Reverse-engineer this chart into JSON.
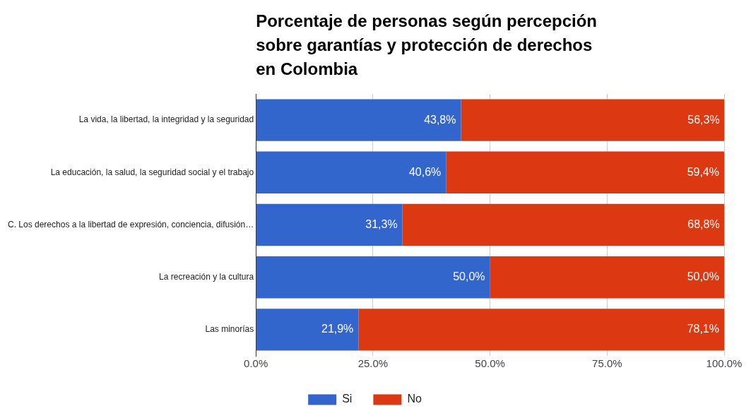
{
  "chart_data": {
    "type": "bar",
    "orientation": "horizontal",
    "stacked": true,
    "title": "Porcentaje de personas según percepción sobre garantías y protección de derechos en Colombia",
    "categories": [
      "La vida, la libertad, la integridad y la seguridad",
      "La educación, la salud, la seguridad social y el trabajo",
      "C. Los derechos a la libertad de expresión, conciencia, difusión…",
      "La recreación y la cultura",
      "Las minorías"
    ],
    "series": [
      {
        "name": "Si",
        "color": "#3366cc",
        "values": [
          43.8,
          40.6,
          31.3,
          50.0,
          21.9
        ],
        "value_labels": [
          "43,8%",
          "40,6%",
          "31,3%",
          "50,0%",
          "21,9%"
        ]
      },
      {
        "name": "No",
        "color": "#dc3912",
        "values": [
          56.3,
          59.4,
          68.8,
          50.0,
          78.1
        ],
        "value_labels": [
          "56,3%",
          "59,4%",
          "68,8%",
          "50,0%",
          "78,1%"
        ]
      }
    ],
    "xlim": [
      0,
      100
    ],
    "xticks": [
      {
        "value": 0,
        "label": "0.0%"
      },
      {
        "value": 25,
        "label": "25.0%"
      },
      {
        "value": 50,
        "label": "50.0%"
      },
      {
        "value": 75,
        "label": "75.0%"
      },
      {
        "value": 100,
        "label": "100.0%"
      }
    ],
    "grid": "x",
    "legend": "bottom"
  }
}
